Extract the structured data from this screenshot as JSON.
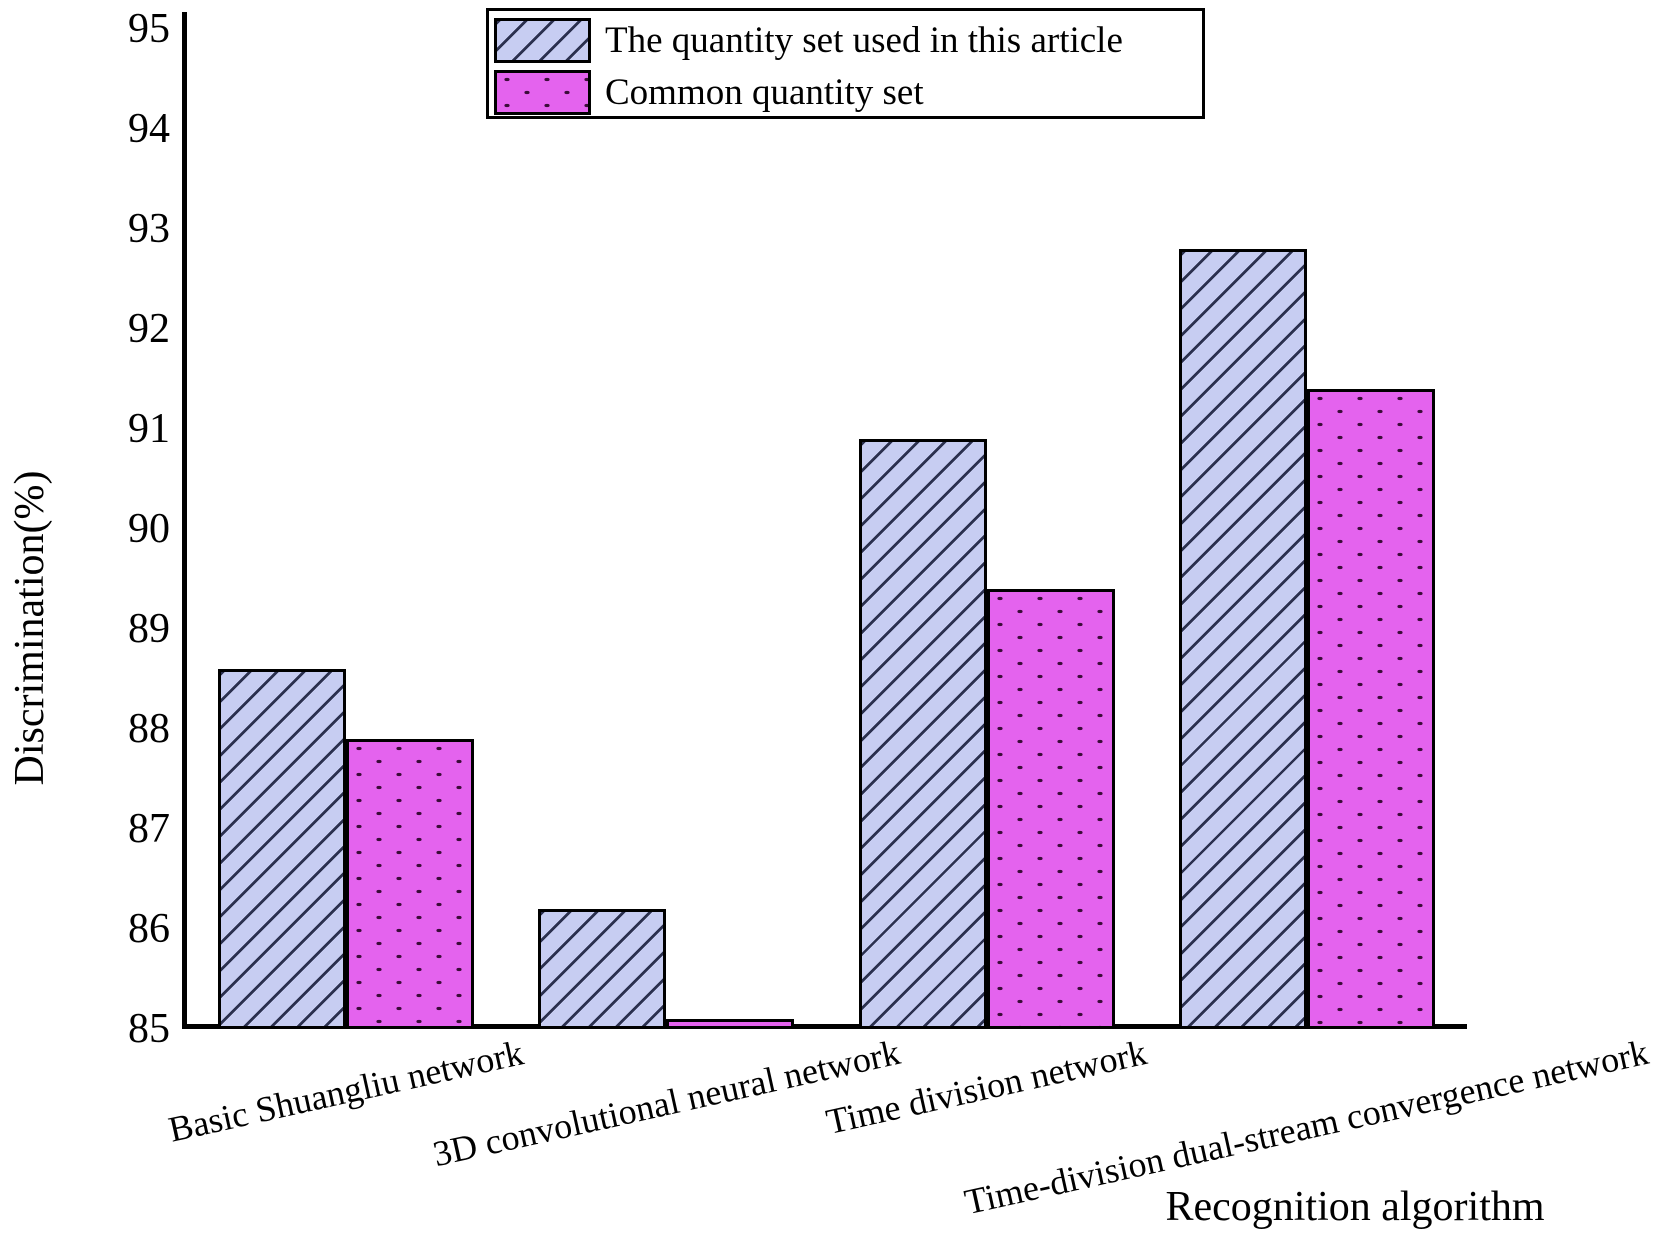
{
  "chart_data": {
    "type": "bar",
    "xlabel": "Recognition algorithm",
    "ylabel": "Discrimination(%)",
    "ylim": [
      85,
      95
    ],
    "yticks": [
      85,
      86,
      87,
      88,
      89,
      90,
      91,
      92,
      93,
      94,
      95
    ],
    "grid": false,
    "legend_position": "upper center",
    "categories": [
      "Basic Shuangliu network",
      "3D convolutional neural network",
      "Time division network",
      "Time-division dual-stream convergence network"
    ],
    "series": [
      {
        "name": "The quantity set used in this article",
        "values": [
          88.6,
          86.2,
          90.9,
          92.8
        ],
        "fill": "#c7cdf2",
        "pattern": "diagonal-hatch",
        "pattern_color": "#2b304f"
      },
      {
        "name": "Common quantity set",
        "values": [
          87.9,
          85.1,
          89.4,
          91.4
        ],
        "fill": "#e463ee",
        "pattern": "dots",
        "pattern_color": "#3a0c38"
      }
    ],
    "bar_edge_color": "#000000",
    "axis_color": "#000000"
  }
}
